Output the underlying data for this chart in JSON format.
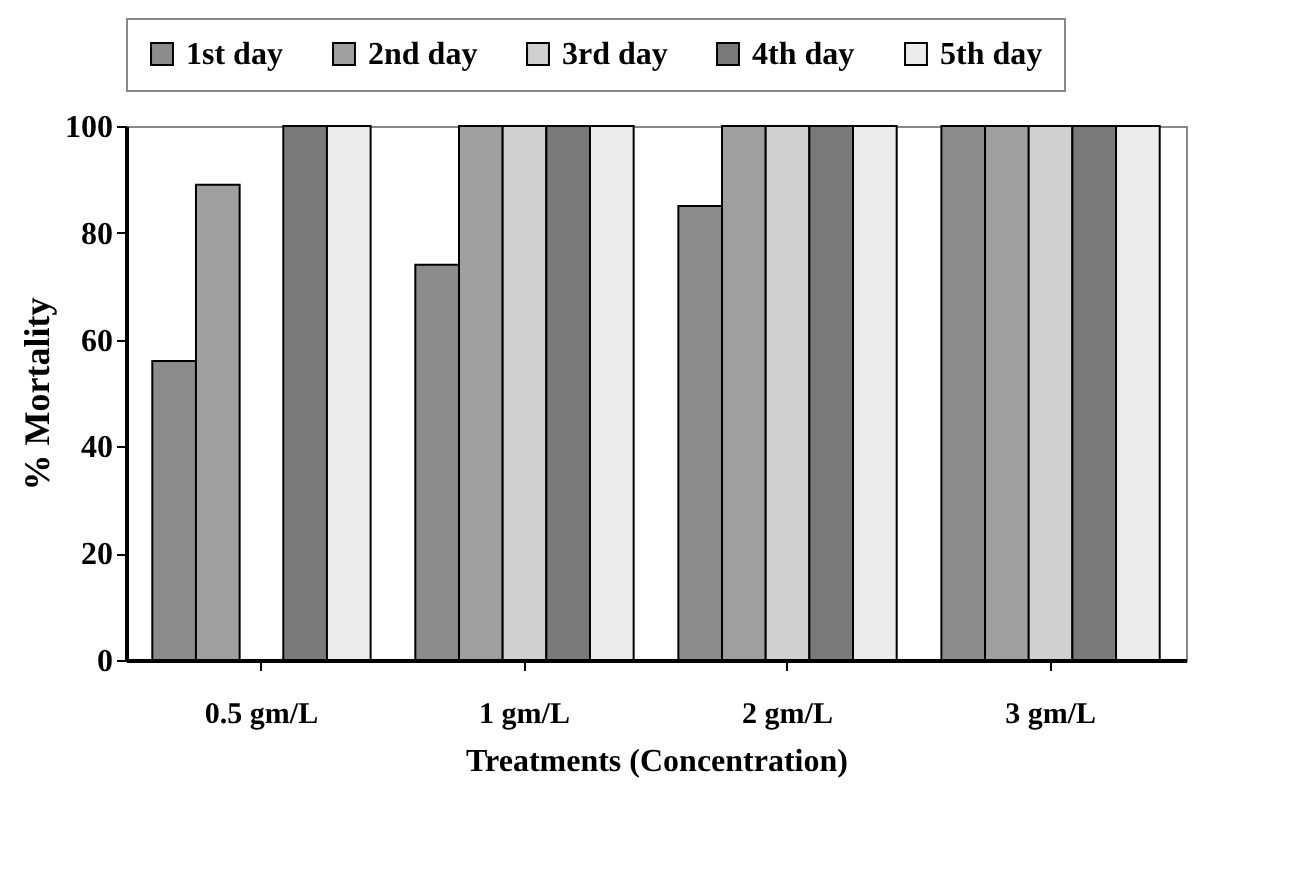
{
  "chart_data": {
    "type": "bar",
    "xlabel": "Treatments (Concentration)",
    "ylabel": "% Mortality",
    "categories": [
      "0.5 gm/L",
      "1 gm/L",
      "2 gm/L",
      "3 gm/L"
    ],
    "series": [
      {
        "name": "1st day",
        "color": "#8c8c8c",
        "values": [
          56,
          74,
          85,
          100
        ]
      },
      {
        "name": "2nd day",
        "color": "#a0a0a0",
        "values": [
          89,
          100,
          100,
          100
        ]
      },
      {
        "name": "3rd day",
        "color": "#d0d0d0",
        "values": [
          null,
          100,
          100,
          100
        ]
      },
      {
        "name": "4th day",
        "color": "#7a7a7a",
        "values": [
          100,
          100,
          100,
          100
        ]
      },
      {
        "name": "5th day",
        "color": "#ececec",
        "values": [
          100,
          100,
          100,
          100
        ]
      }
    ],
    "ylim": [
      0,
      100
    ],
    "yticks": [
      0,
      20,
      40,
      60,
      80,
      100
    ],
    "grid": false,
    "legend": "top"
  }
}
